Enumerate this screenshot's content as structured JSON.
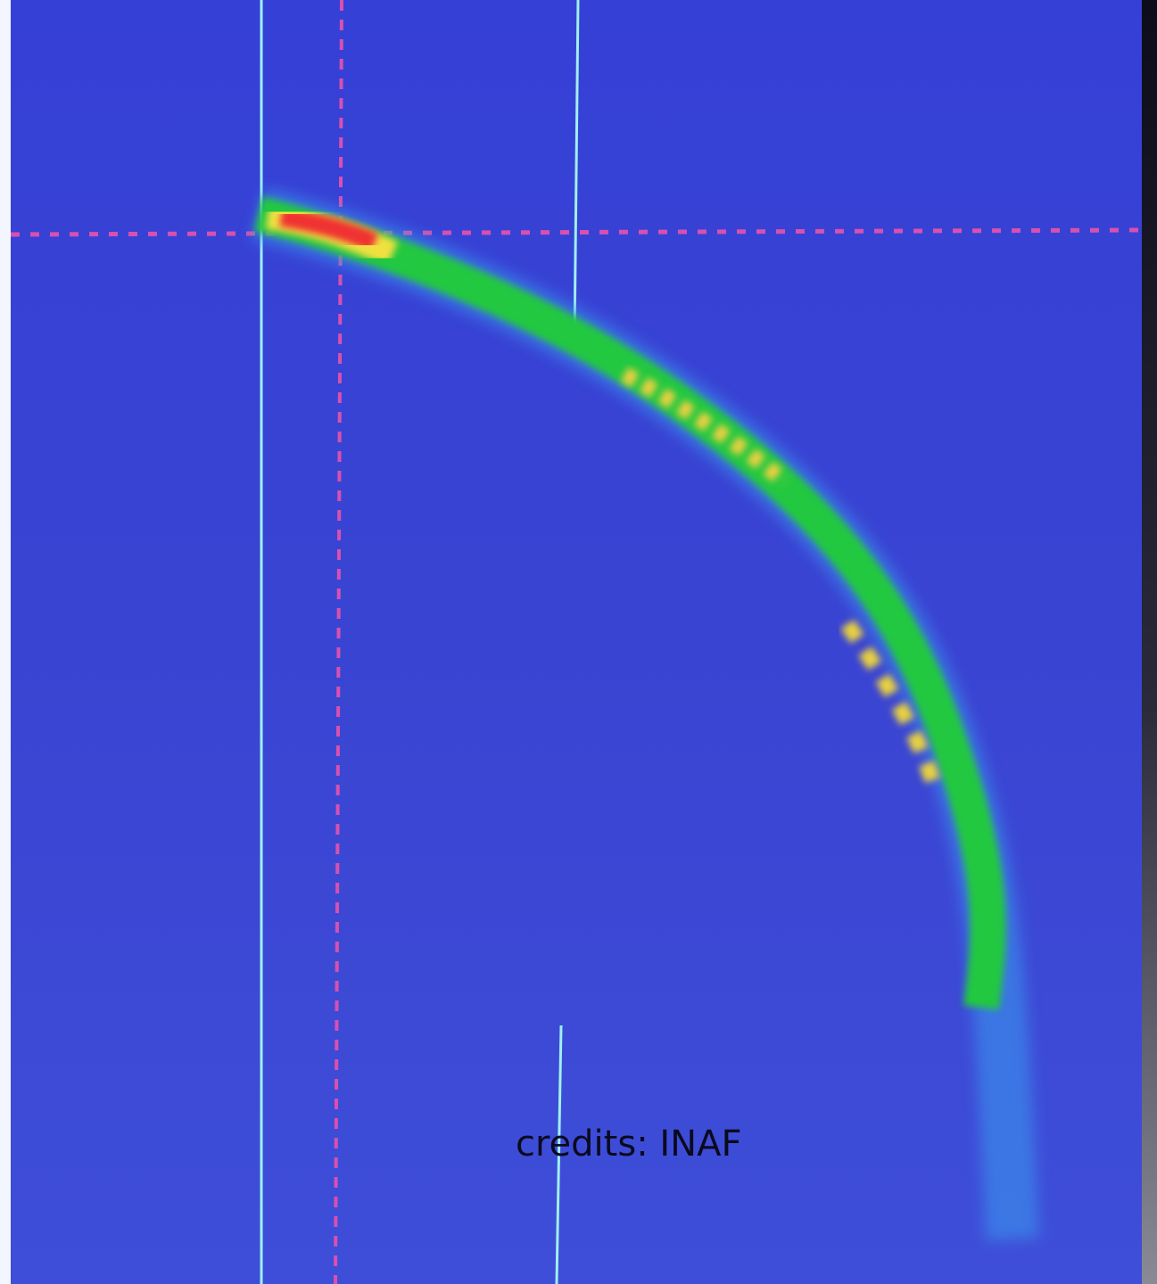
{
  "credit": "credits: INAF"
}
